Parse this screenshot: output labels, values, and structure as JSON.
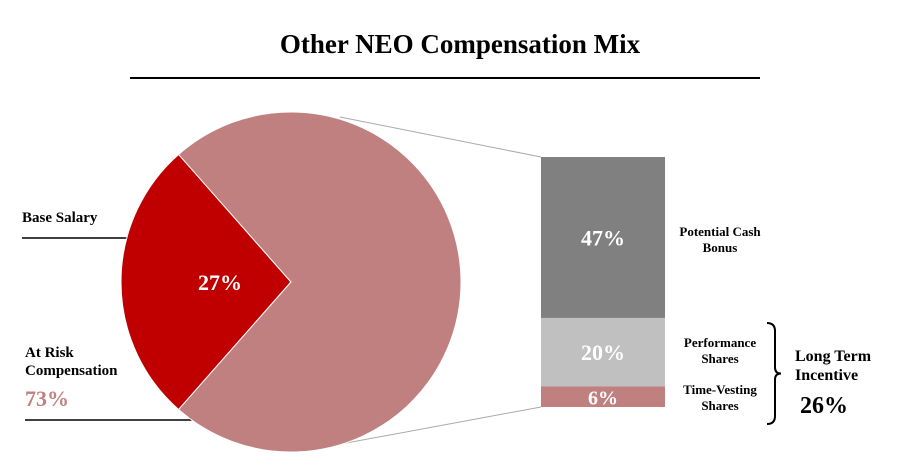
{
  "chart_data": {
    "type": "pie",
    "title": "Other NEO Compensation Mix",
    "pie": {
      "categories": [
        "Base Salary",
        "At Risk Compensation"
      ],
      "values": [
        27,
        73
      ],
      "value_labels": [
        "27%",
        "73%"
      ],
      "colors": [
        "#c00000",
        "#c08080"
      ]
    },
    "bar": {
      "categories": [
        "Potential Cash Bonus",
        "Performance Shares",
        "Time-Vesting Shares"
      ],
      "values": [
        47,
        20,
        6
      ],
      "value_labels": [
        "47%",
        "20%",
        "6%"
      ],
      "colors": [
        "#808080",
        "#c0c0c0",
        "#c08080"
      ]
    },
    "bracket": {
      "label": "Long Term Incentive",
      "value": 26,
      "value_label": "26%"
    }
  }
}
